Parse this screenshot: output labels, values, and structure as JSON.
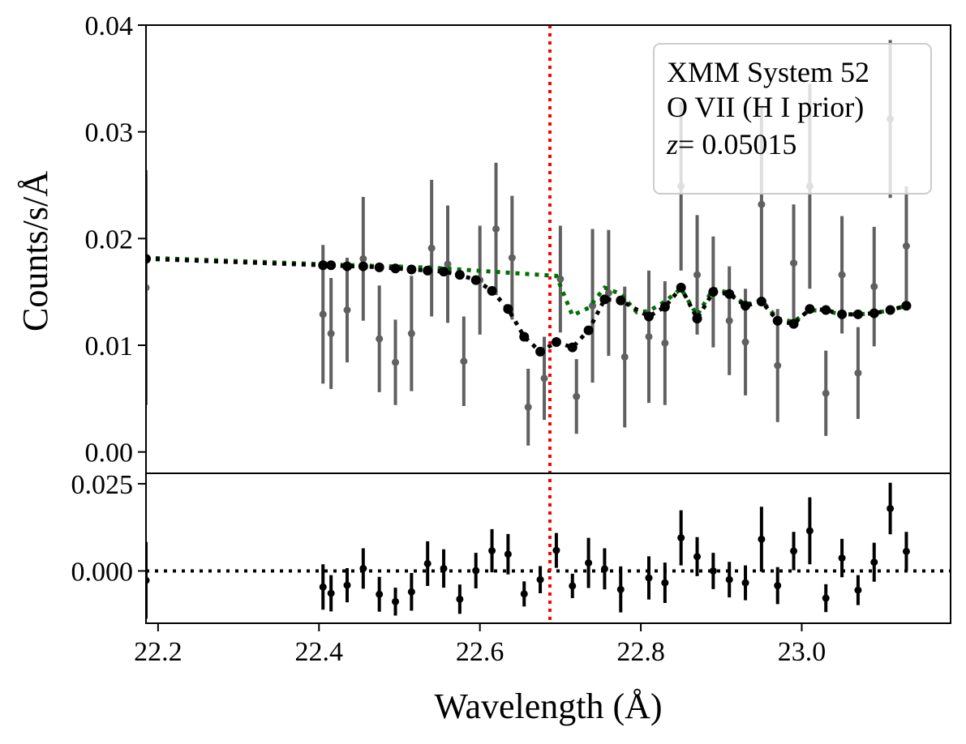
{
  "chart_data": {
    "type": "scatter",
    "title": "",
    "xlabel": "Wavelength (Å)",
    "ylabel": "Counts/s/Å",
    "xlim": [
      22.185,
      23.185
    ],
    "xticks": [
      22.2,
      22.4,
      22.6,
      22.8,
      23.0
    ],
    "xtick_labels": [
      "22.2",
      "22.4",
      "22.6",
      "22.8",
      "23.0"
    ],
    "top_panel": {
      "ylim": [
        -0.002,
        0.04
      ],
      "yticks": [
        0.0,
        0.01,
        0.02,
        0.03,
        0.04
      ],
      "ytick_labels": [
        "0.00",
        "0.01",
        "0.02",
        "0.03",
        "0.04"
      ],
      "legend_lines": [
        "XMM System 52",
        "O VII (H I prior)",
        "= 0.05015"
      ],
      "legend_z_symbol": "z",
      "legend_position": "top-right",
      "data": {
        "name": "data",
        "color": "#606060",
        "x": [
          22.185,
          22.405,
          22.415,
          22.435,
          22.455,
          22.475,
          22.495,
          22.515,
          22.54,
          22.56,
          22.58,
          22.6,
          22.62,
          22.64,
          22.66,
          22.68,
          22.7,
          22.72,
          22.74,
          22.76,
          22.78,
          22.81,
          22.83,
          22.85,
          22.87,
          22.89,
          22.91,
          22.93,
          22.95,
          22.97,
          22.99,
          23.01,
          23.03,
          23.05,
          23.07,
          23.09,
          23.11,
          23.13
        ],
        "y": [
          0.0154,
          0.0129,
          0.0111,
          0.0133,
          0.0181,
          0.0106,
          0.0084,
          0.0111,
          0.0191,
          0.0176,
          0.0085,
          0.0161,
          0.0209,
          0.0182,
          0.0042,
          0.0069,
          0.0162,
          0.0052,
          0.0137,
          0.0149,
          0.0089,
          0.0108,
          0.0102,
          0.0249,
          0.0166,
          0.015,
          0.0123,
          0.0103,
          0.0232,
          0.0081,
          0.0177,
          0.0249,
          0.0055,
          0.0166,
          0.0074,
          0.0155,
          0.0312,
          0.0193
        ],
        "yerr": [
          0.011,
          0.0065,
          0.0052,
          0.0049,
          0.0058,
          0.005,
          0.004,
          0.0054,
          0.0064,
          0.0055,
          0.0042,
          0.0051,
          0.0062,
          0.0058,
          0.0036,
          0.0039,
          0.005,
          0.0035,
          0.0072,
          0.0059,
          0.0066,
          0.0062,
          0.0058,
          0.0079,
          0.0056,
          0.0052,
          0.0051,
          0.005,
          0.0093,
          0.0053,
          0.0055,
          0.0096,
          0.004,
          0.0055,
          0.0043,
          0.0056,
          0.0074,
          0.0056
        ]
      },
      "model_continuum": {
        "name": "model without absorption",
        "color": "#007000",
        "style": "dotted",
        "x": [
          22.185,
          22.405,
          22.415,
          22.435,
          22.455,
          22.475,
          22.495,
          22.515,
          22.535,
          22.555,
          22.575,
          22.595,
          22.615,
          22.635,
          22.655,
          22.675,
          22.695,
          22.715,
          22.735,
          22.755,
          22.775,
          22.795,
          22.81,
          22.83,
          22.85,
          22.87,
          22.89,
          22.91,
          22.93,
          22.95,
          22.97,
          22.99,
          23.01,
          23.03,
          23.05,
          23.07,
          23.09,
          23.11,
          23.13
        ],
        "y": [
          0.0182,
          0.0176,
          0.0176,
          0.0175,
          0.0175,
          0.0174,
          0.0174,
          0.0173,
          0.0173,
          0.0172,
          0.0171,
          0.017,
          0.0169,
          0.0168,
          0.0167,
          0.0166,
          0.0165,
          0.0128,
          0.0135,
          0.0154,
          0.0148,
          0.0131,
          0.0132,
          0.0141,
          0.0153,
          0.0128,
          0.0153,
          0.0149,
          0.0138,
          0.0142,
          0.0125,
          0.0122,
          0.0133,
          0.0132,
          0.0129,
          0.0129,
          0.013,
          0.0133,
          0.0137
        ]
      },
      "model_absorbed": {
        "name": "model with absorption",
        "color": "#000000",
        "style": "dotted",
        "x": [
          22.185,
          22.405,
          22.415,
          22.435,
          22.455,
          22.475,
          22.495,
          22.515,
          22.535,
          22.555,
          22.575,
          22.595,
          22.615,
          22.635,
          22.655,
          22.675,
          22.695,
          22.715,
          22.735,
          22.755,
          22.775,
          22.81,
          22.83,
          22.85,
          22.87,
          22.89,
          22.91,
          22.93,
          22.95,
          22.97,
          22.99,
          23.01,
          23.03,
          23.05,
          23.07,
          23.09,
          23.11,
          23.13
        ],
        "y": [
          0.0181,
          0.0175,
          0.0175,
          0.0174,
          0.0174,
          0.0173,
          0.0172,
          0.0171,
          0.017,
          0.0169,
          0.0166,
          0.0161,
          0.0151,
          0.0134,
          0.0108,
          0.0094,
          0.0103,
          0.0098,
          0.0114,
          0.0143,
          0.0142,
          0.0127,
          0.0136,
          0.0154,
          0.0125,
          0.015,
          0.0148,
          0.0137,
          0.0141,
          0.0123,
          0.012,
          0.0134,
          0.0133,
          0.0129,
          0.0129,
          0.013,
          0.0133,
          0.0137
        ]
      },
      "line_marker": {
        "x": 22.687,
        "color": "#ff0000",
        "style": "dotted"
      }
    },
    "bottom_panel": {
      "ylabel": "",
      "ylim": [
        -0.015,
        0.028
      ],
      "yticks": [
        0.0,
        0.025
      ],
      "ytick_labels": [
        "0.000",
        "0.025"
      ],
      "zero_line": {
        "y": 0.0,
        "color": "#000000",
        "style": "dotted"
      },
      "residuals": {
        "name": "residuals",
        "color": "#000000",
        "x": [
          22.185,
          22.405,
          22.415,
          22.435,
          22.455,
          22.475,
          22.495,
          22.515,
          22.535,
          22.555,
          22.575,
          22.595,
          22.615,
          22.635,
          22.655,
          22.675,
          22.695,
          22.715,
          22.735,
          22.755,
          22.775,
          22.81,
          22.83,
          22.85,
          22.87,
          22.89,
          22.91,
          22.93,
          22.95,
          22.97,
          22.99,
          23.01,
          23.03,
          23.05,
          23.07,
          23.09,
          23.11,
          23.13
        ],
        "y": [
          -0.0027,
          -0.0046,
          -0.0064,
          -0.0041,
          0.0007,
          -0.0067,
          -0.0088,
          -0.006,
          0.0021,
          0.0007,
          -0.0081,
          0.0001,
          0.0058,
          0.0048,
          -0.0066,
          -0.0025,
          0.0059,
          -0.0043,
          0.0023,
          0.0006,
          -0.0053,
          -0.002,
          -0.0034,
          0.0095,
          0.0041,
          0.0,
          -0.0025,
          -0.0034,
          0.0091,
          -0.0042,
          0.0057,
          0.0115,
          -0.0078,
          0.0037,
          -0.0055,
          0.0025,
          0.0179,
          0.0056
        ]
      },
      "residual_errors": [
        0.011,
        0.0065,
        0.0052,
        0.0049,
        0.0058,
        0.005,
        0.004,
        0.0054,
        0.0064,
        0.0055,
        0.0042,
        0.0051,
        0.0062,
        0.0058,
        0.0036,
        0.0039,
        0.005,
        0.0035,
        0.0072,
        0.0059,
        0.0066,
        0.0062,
        0.0058,
        0.0079,
        0.0056,
        0.0052,
        0.0051,
        0.005,
        0.0093,
        0.0053,
        0.0055,
        0.0096,
        0.004,
        0.0055,
        0.0043,
        0.0056,
        0.0074,
        0.0056
      ]
    }
  }
}
